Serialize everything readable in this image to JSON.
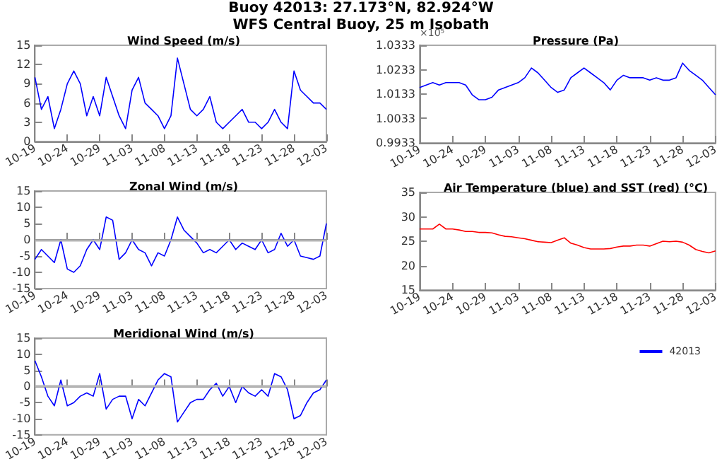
{
  "chart_data": [
    {
      "type": "line",
      "title": "Wind Speed (m/s)",
      "annotations": [
        "Buoy 42013: 27.173°N, 82.924°W",
        "WFS Central Buoy, 25 m Isobath"
      ],
      "legend": "bottom right",
      "x": [
        "--10-19",
        "--10-20",
        "--10-21",
        "--10-22",
        "--10-23",
        "--10-24",
        "--10-25",
        "--10-26",
        "--10-27",
        "--10-28",
        "--10-29",
        "--10-30",
        "--10-31",
        "--11-01",
        "--11-02",
        "--11-03",
        "--11-04",
        "--11-05",
        "--11-06",
        "--11-07",
        "--11-08",
        "--11-09",
        "--11-10",
        "--11-11",
        "--11-12",
        "--11-13",
        "--11-14",
        "--11-15",
        "--11-16",
        "--11-17",
        "--11-18",
        "--11-19",
        "--11-20",
        "--11-21",
        "--11-22",
        "--11-23",
        "--11-24",
        "--11-25",
        "--11-26",
        "--11-27",
        "--11-28",
        "--11-29",
        "--11-30",
        "--12-01",
        "--12-02",
        "--12-03"
      ],
      "series": [
        {
          "name": "42013",
          "color": "#0000ff",
          "values": [
            10,
            5,
            7,
            2,
            5,
            9,
            11,
            9,
            4,
            7,
            4,
            10,
            7,
            4,
            2,
            8,
            10,
            6,
            5,
            4,
            2,
            4,
            13,
            9,
            5,
            4,
            5,
            7,
            3,
            2,
            3,
            4,
            5,
            3,
            3,
            2,
            3,
            5,
            3,
            2,
            11,
            8,
            7,
            6,
            6,
            5
          ]
        }
      ],
      "xlim": [
        "--10-19",
        "--12-03"
      ],
      "xticks": [
        {
          "value": "--10-19",
          "label": "10-19"
        },
        {
          "value": "--10-24",
          "label": "10-24"
        },
        {
          "value": "--10-29",
          "label": "10-29"
        },
        {
          "value": "--11-03",
          "label": "11-03"
        },
        {
          "value": "--11-08",
          "label": "11-08"
        },
        {
          "value": "--11-13",
          "label": "11-13"
        },
        {
          "value": "--11-18",
          "label": "11-18"
        },
        {
          "value": "--11-23",
          "label": "11-23"
        },
        {
          "value": "--11-28",
          "label": "11-28"
        },
        {
          "value": "--12-03",
          "label": "12-03"
        }
      ],
      "ylim": [
        0,
        15
      ],
      "yticks": [
        0,
        3,
        6,
        9,
        12,
        15
      ]
    },
    {
      "type": "line",
      "title": "Zonal Wind (m/s)",
      "x": [
        "--10-19",
        "--10-20",
        "--10-21",
        "--10-22",
        "--10-23",
        "--10-24",
        "--10-25",
        "--10-26",
        "--10-27",
        "--10-28",
        "--10-29",
        "--10-30",
        "--10-31",
        "--11-01",
        "--11-02",
        "--11-03",
        "--11-04",
        "--11-05",
        "--11-06",
        "--11-07",
        "--11-08",
        "--11-09",
        "--11-10",
        "--11-11",
        "--11-12",
        "--11-13",
        "--11-14",
        "--11-15",
        "--11-16",
        "--11-17",
        "--11-18",
        "--11-19",
        "--11-20",
        "--11-21",
        "--11-22",
        "--11-23",
        "--11-24",
        "--11-25",
        "--11-26",
        "--11-27",
        "--11-28",
        "--11-29",
        "--11-30",
        "--12-01",
        "--12-02",
        "--12-03"
      ],
      "series": [
        {
          "color": "#0000ff",
          "values": [
            -6,
            -3,
            -5,
            -7,
            0,
            -9,
            -10,
            -8,
            -3,
            0,
            -3,
            7,
            6,
            -6,
            -4,
            0,
            -3,
            -4,
            -8,
            -4,
            -5,
            0,
            7,
            3,
            1,
            -1,
            -4,
            -3,
            -4,
            -2,
            0,
            -3,
            -1,
            -2,
            -3,
            0,
            -4,
            -3,
            2,
            -2,
            0,
            -5,
            -5.5,
            -6,
            -5,
            5
          ]
        }
      ],
      "ref_lines": [
        {
          "axis": "y",
          "value": 0,
          "color": "#b3b3b3"
        }
      ],
      "xlim": [
        "--10-19",
        "--12-03"
      ],
      "xticks": [
        {
          "value": "--10-19",
          "label": "10-19"
        },
        {
          "value": "--10-24",
          "label": "10-24"
        },
        {
          "value": "--10-29",
          "label": "10-29"
        },
        {
          "value": "--11-03",
          "label": "11-03"
        },
        {
          "value": "--11-08",
          "label": "11-08"
        },
        {
          "value": "--11-13",
          "label": "11-13"
        },
        {
          "value": "--11-18",
          "label": "11-18"
        },
        {
          "value": "--11-23",
          "label": "11-23"
        },
        {
          "value": "--11-28",
          "label": "11-28"
        },
        {
          "value": "--12-03",
          "label": "12-03"
        }
      ],
      "ylim": [
        -15,
        15
      ],
      "yticks": [
        -15,
        -10,
        -5,
        0,
        5,
        10,
        15
      ]
    },
    {
      "type": "line",
      "title": "Meridional Wind (m/s)",
      "x": [
        "--10-19",
        "--10-20",
        "--10-21",
        "--10-22",
        "--10-23",
        "--10-24",
        "--10-25",
        "--10-26",
        "--10-27",
        "--10-28",
        "--10-29",
        "--10-30",
        "--10-31",
        "--11-01",
        "--11-02",
        "--11-03",
        "--11-04",
        "--11-05",
        "--11-06",
        "--11-07",
        "--11-08",
        "--11-09",
        "--11-10",
        "--11-11",
        "--11-12",
        "--11-13",
        "--11-14",
        "--11-15",
        "--11-16",
        "--11-17",
        "--11-18",
        "--11-19",
        "--11-20",
        "--11-21",
        "--11-22",
        "--11-23",
        "--11-24",
        "--11-25",
        "--11-26",
        "--11-27",
        "--11-28",
        "--11-29",
        "--11-30",
        "--12-01",
        "--12-02",
        "--12-03"
      ],
      "series": [
        {
          "color": "#0000ff",
          "values": [
            8,
            3,
            -3,
            -6,
            2,
            -6,
            -5,
            -3,
            -2,
            -3,
            4,
            -7,
            -4,
            -3,
            -3,
            -10,
            -4,
            -6,
            -2,
            2,
            4,
            3,
            -11,
            -8,
            -5,
            -4,
            -4,
            -1,
            1,
            -3,
            0,
            -5,
            0,
            -2,
            -3,
            -1,
            -3,
            4,
            3,
            -1,
            -10,
            -9,
            -5,
            -2,
            -1,
            2
          ]
        }
      ],
      "ref_lines": [
        {
          "axis": "y",
          "value": 0,
          "color": "#b3b3b3"
        }
      ],
      "xlim": [
        "--10-19",
        "--12-03"
      ],
      "xticks": [
        {
          "value": "--10-19",
          "label": "10-19"
        },
        {
          "value": "--10-24",
          "label": "10-24"
        },
        {
          "value": "--10-29",
          "label": "10-29"
        },
        {
          "value": "--11-03",
          "label": "11-03"
        },
        {
          "value": "--11-08",
          "label": "11-08"
        },
        {
          "value": "--11-13",
          "label": "11-13"
        },
        {
          "value": "--11-18",
          "label": "11-18"
        },
        {
          "value": "--11-23",
          "label": "11-23"
        },
        {
          "value": "--11-28",
          "label": "11-28"
        },
        {
          "value": "--12-03",
          "label": "12-03"
        }
      ],
      "ylim": [
        -15,
        15
      ],
      "yticks": [
        -15,
        -10,
        -5,
        0,
        5,
        10,
        15
      ]
    },
    {
      "type": "line",
      "title": "Pressure (Pa)",
      "annotations": [
        "×10⁵"
      ],
      "x": [
        "--10-19",
        "--10-20",
        "--10-21",
        "--10-22",
        "--10-23",
        "--10-24",
        "--10-25",
        "--10-26",
        "--10-27",
        "--10-28",
        "--10-29",
        "--10-30",
        "--10-31",
        "--11-01",
        "--11-02",
        "--11-03",
        "--11-04",
        "--11-05",
        "--11-06",
        "--11-07",
        "--11-08",
        "--11-09",
        "--11-10",
        "--11-11",
        "--11-12",
        "--11-13",
        "--11-14",
        "--11-15",
        "--11-16",
        "--11-17",
        "--11-18",
        "--11-19",
        "--11-20",
        "--11-21",
        "--11-22",
        "--11-23",
        "--11-24",
        "--11-25",
        "--11-26",
        "--11-27",
        "--11-28",
        "--11-29",
        "--11-30",
        "--12-01",
        "--12-02",
        "--12-03"
      ],
      "series": [
        {
          "color": "#0000ff",
          "values": [
            1.016,
            1.017,
            1.018,
            1.017,
            1.018,
            1.018,
            1.018,
            1.017,
            1.013,
            1.011,
            1.011,
            1.012,
            1.015,
            1.016,
            1.017,
            1.018,
            1.02,
            1.024,
            1.022,
            1.019,
            1.016,
            1.014,
            1.015,
            1.02,
            1.022,
            1.024,
            1.022,
            1.02,
            1.018,
            1.015,
            1.019,
            1.021,
            1.02,
            1.02,
            1.02,
            1.019,
            1.02,
            1.019,
            1.019,
            1.02,
            1.026,
            1.023,
            1.021,
            1.019,
            1.016,
            1.013
          ]
        }
      ],
      "xlim": [
        "--10-19",
        "--12-03"
      ],
      "xticks": [
        {
          "value": "--10-19",
          "label": "10-19"
        },
        {
          "value": "--10-24",
          "label": "10-24"
        },
        {
          "value": "--10-29",
          "label": "10-29"
        },
        {
          "value": "--11-03",
          "label": "11-03"
        },
        {
          "value": "--11-08",
          "label": "11-08"
        },
        {
          "value": "--11-13",
          "label": "11-13"
        },
        {
          "value": "--11-18",
          "label": "11-18"
        },
        {
          "value": "--11-23",
          "label": "11-23"
        },
        {
          "value": "--11-28",
          "label": "11-28"
        },
        {
          "value": "--12-03",
          "label": "12-03"
        }
      ],
      "ylim": [
        0.9933,
        1.0333
      ],
      "yticks": [
        0.9933,
        1.0033,
        1.0133,
        1.0233,
        1.0333
      ]
    },
    {
      "type": "line",
      "title": "Air Temperature (blue) and SST (red) (°C)",
      "x": [
        "--10-19",
        "--10-20",
        "--10-21",
        "--10-22",
        "--10-23",
        "--10-24",
        "--10-25",
        "--10-26",
        "--10-27",
        "--10-28",
        "--10-29",
        "--10-30",
        "--10-31",
        "--11-01",
        "--11-02",
        "--11-03",
        "--11-04",
        "--11-05",
        "--11-06",
        "--11-07",
        "--11-08",
        "--11-09",
        "--11-10",
        "--11-11",
        "--11-12",
        "--11-13",
        "--11-14",
        "--11-15",
        "--11-16",
        "--11-17",
        "--11-18",
        "--11-19",
        "--11-20",
        "--11-21",
        "--11-22",
        "--11-23",
        "--11-24",
        "--11-25",
        "--11-26",
        "--11-27",
        "--11-28",
        "--11-29",
        "--11-30",
        "--12-01",
        "--12-02",
        "--12-03"
      ],
      "series": [
        {
          "color": "#ff0000",
          "values": [
            27.5,
            27.5,
            27.5,
            28.5,
            27.5,
            27.5,
            27.3,
            27.0,
            27.0,
            26.8,
            26.8,
            26.7,
            26.3,
            26.0,
            25.9,
            25.7,
            25.5,
            25.2,
            24.9,
            24.8,
            24.7,
            25.2,
            25.7,
            24.6,
            24.2,
            23.7,
            23.4,
            23.4,
            23.4,
            23.5,
            23.8,
            24.0,
            24.0,
            24.2,
            24.2,
            24.0,
            24.5,
            25.0,
            24.9,
            25.0,
            24.8,
            24.2,
            23.3,
            22.9,
            22.6,
            23.0
          ]
        }
      ],
      "xlim": [
        "--10-19",
        "--12-03"
      ],
      "xticks": [
        {
          "value": "--10-19",
          "label": "10-19"
        },
        {
          "value": "--10-24",
          "label": "10-24"
        },
        {
          "value": "--10-29",
          "label": "10-29"
        },
        {
          "value": "--11-03",
          "label": "11-03"
        },
        {
          "value": "--11-08",
          "label": "11-08"
        },
        {
          "value": "--11-13",
          "label": "11-13"
        },
        {
          "value": "--11-18",
          "label": "11-18"
        },
        {
          "value": "--11-23",
          "label": "11-23"
        },
        {
          "value": "--11-28",
          "label": "11-28"
        },
        {
          "value": "--12-03",
          "label": "12-03"
        }
      ],
      "ylim": [
        15,
        35
      ],
      "yticks": [
        15,
        20,
        25,
        30,
        35
      ]
    }
  ]
}
